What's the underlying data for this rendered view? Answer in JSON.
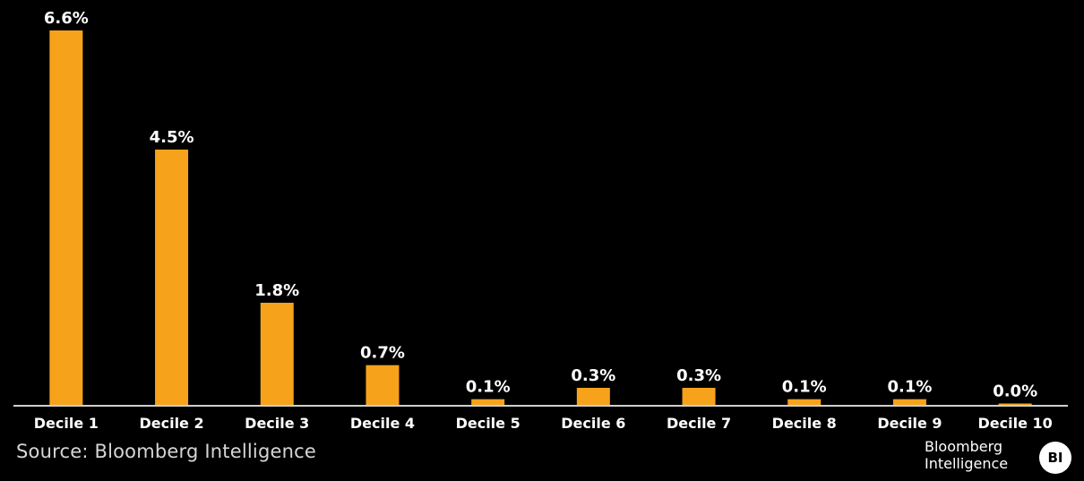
{
  "chart_data": {
    "type": "bar",
    "categories": [
      "Decile 1",
      "Decile 2",
      "Decile 3",
      "Decile 4",
      "Decile 5",
      "Decile 6",
      "Decile 7",
      "Decile 8",
      "Decile 9",
      "Decile 10"
    ],
    "values": [
      6.6,
      4.5,
      1.8,
      0.7,
      0.1,
      0.3,
      0.3,
      0.1,
      0.1,
      0.0
    ],
    "data_labels": [
      "6.6%",
      "4.5%",
      "1.8%",
      "0.7%",
      "0.1%",
      "0.3%",
      "0.3%",
      "0.1%",
      "0.1%",
      "0.0%"
    ],
    "title": "",
    "xlabel": "",
    "ylabel": "",
    "ylim": [
      0,
      6.6
    ],
    "grid": false,
    "legend": "none",
    "bar_color": "#F7A21B",
    "background": "#000000"
  },
  "footer": {
    "source": "Source: Bloomberg Intelligence",
    "brand_line1": "Bloomberg",
    "brand_line2": "Intelligence",
    "brand_badge": "BI"
  }
}
